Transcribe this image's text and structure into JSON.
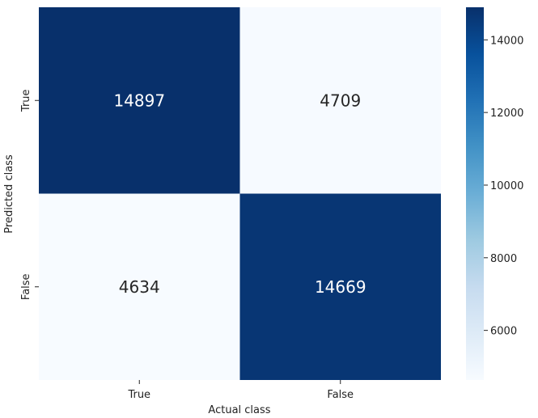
{
  "chart_data": {
    "type": "heatmap",
    "title": "",
    "xlabel": "Actual class",
    "ylabel": "Predicted class",
    "x_categories": [
      "True",
      "False"
    ],
    "y_categories": [
      "True",
      "False"
    ],
    "values": [
      [
        14897,
        4709
      ],
      [
        4634,
        14669
      ]
    ],
    "colormap": "Blues",
    "colorbar": {
      "range": [
        4634,
        14897
      ],
      "ticks": [
        6000,
        8000,
        10000,
        12000,
        14000
      ],
      "tick_labels": [
        "6000",
        "8000",
        "10000",
        "12000",
        "14000"
      ]
    },
    "colors": {
      "low": "#f7fbff",
      "high": "#08306b",
      "text_on_dark": "#ffffff",
      "text_on_light": "#262626"
    }
  }
}
